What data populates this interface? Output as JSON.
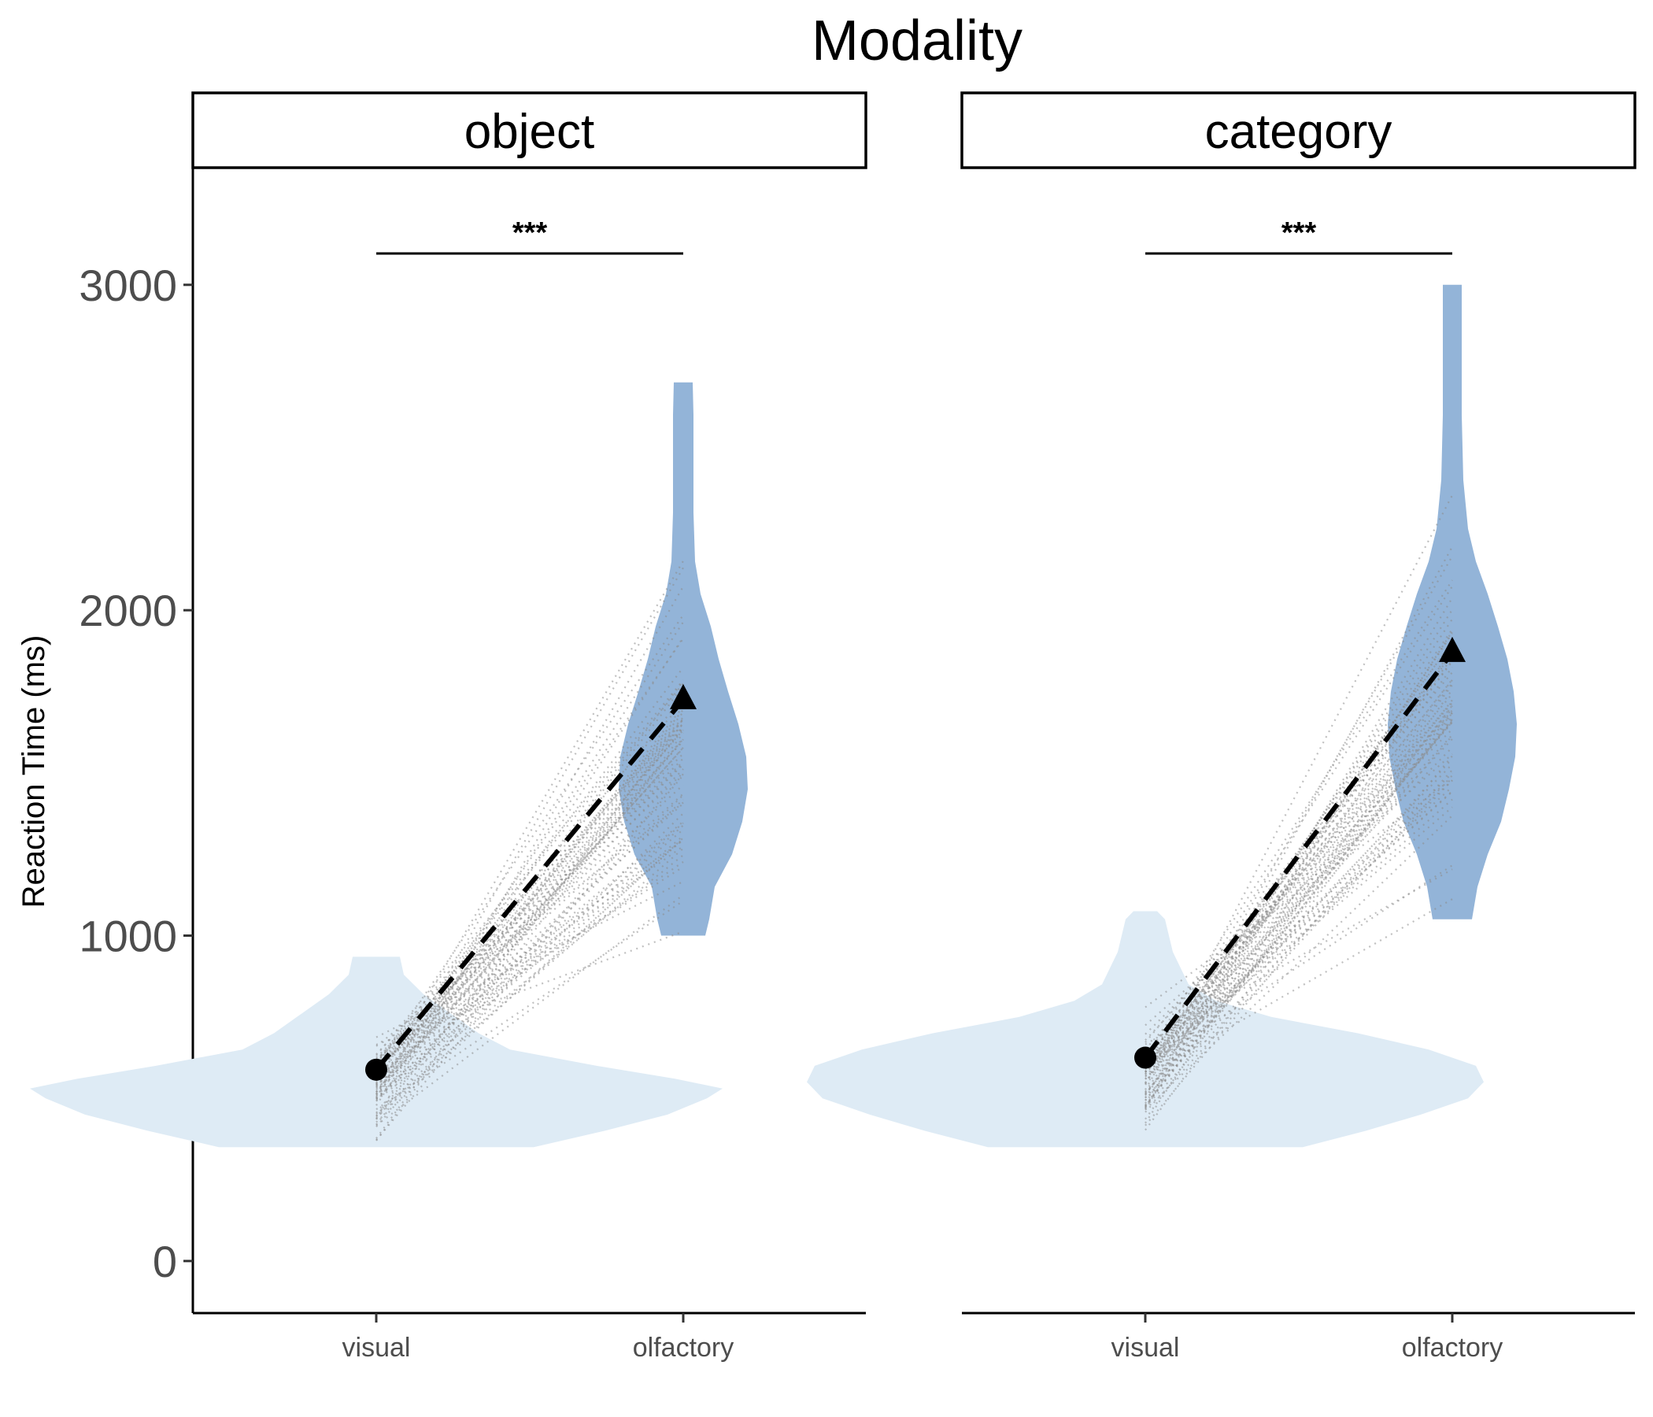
{
  "chart_data": {
    "type": "violin",
    "title": "Modality",
    "ylabel": "Reaction Time (ms)",
    "xlabel": "",
    "ylim": [
      -160,
      3360
    ],
    "yticks": [
      0,
      1000,
      2000,
      3000
    ],
    "grid": false,
    "legend": "none",
    "colors": {
      "visual": "#deebf5",
      "olfactory": "#93b4d8",
      "marker": "#000000",
      "lines": "#8c8c8c"
    },
    "categories": [
      "visual",
      "olfactory"
    ],
    "panels": [
      {
        "strip_label": "object",
        "significance": "***",
        "means": {
          "visual": 588,
          "olfactory": 1725
        },
        "violins": {
          "visual": {
            "min": 350,
            "max": 935,
            "profile": [
              [
                350,
                200
              ],
              [
                400,
                290
              ],
              [
                450,
                370
              ],
              [
                500,
                420
              ],
              [
                530,
                440
              ],
              [
                560,
                380
              ],
              [
                600,
                280
              ],
              [
                650,
                170
              ],
              [
                700,
                130
              ],
              [
                760,
                95
              ],
              [
                820,
                60
              ],
              [
                880,
                35
              ],
              [
                935,
                30
              ]
            ]
          },
          "olfactory": {
            "min": 1000,
            "max": 2700,
            "profile": [
              [
                1000,
                28
              ],
              [
                1050,
                33
              ],
              [
                1150,
                40
              ],
              [
                1250,
                62
              ],
              [
                1350,
                75
              ],
              [
                1450,
                82
              ],
              [
                1550,
                80
              ],
              [
                1650,
                70
              ],
              [
                1750,
                57
              ],
              [
                1850,
                45
              ],
              [
                1950,
                35
              ],
              [
                2050,
                22
              ],
              [
                2150,
                15
              ],
              [
                2300,
                13
              ],
              [
                2450,
                13
              ],
              [
                2600,
                13
              ],
              [
                2700,
                12
              ]
            ]
          }
        }
      },
      {
        "strip_label": "category",
        "significance": "***",
        "means": {
          "visual": 625,
          "olfactory": 1870
        },
        "violins": {
          "visual": {
            "min": 350,
            "max": 1075,
            "profile": [
              [
                350,
                200
              ],
              [
                400,
                280
              ],
              [
                450,
                350
              ],
              [
                500,
                410
              ],
              [
                550,
                430
              ],
              [
                600,
                420
              ],
              [
                650,
                360
              ],
              [
                700,
                270
              ],
              [
                750,
                160
              ],
              [
                800,
                90
              ],
              [
                850,
                55
              ],
              [
                950,
                35
              ],
              [
                1050,
                25
              ],
              [
                1075,
                15
              ]
            ]
          },
          "olfactory": {
            "min": 1050,
            "max": 3000,
            "profile": [
              [
                1050,
                25
              ],
              [
                1150,
                32
              ],
              [
                1250,
                45
              ],
              [
                1350,
                62
              ],
              [
                1450,
                72
              ],
              [
                1550,
                80
              ],
              [
                1650,
                82
              ],
              [
                1750,
                78
              ],
              [
                1850,
                70
              ],
              [
                1950,
                58
              ],
              [
                2050,
                45
              ],
              [
                2150,
                30
              ],
              [
                2250,
                20
              ],
              [
                2400,
                14
              ],
              [
                2600,
                12
              ],
              [
                2800,
                12
              ],
              [
                3000,
                12
              ]
            ]
          }
        }
      }
    ]
  }
}
